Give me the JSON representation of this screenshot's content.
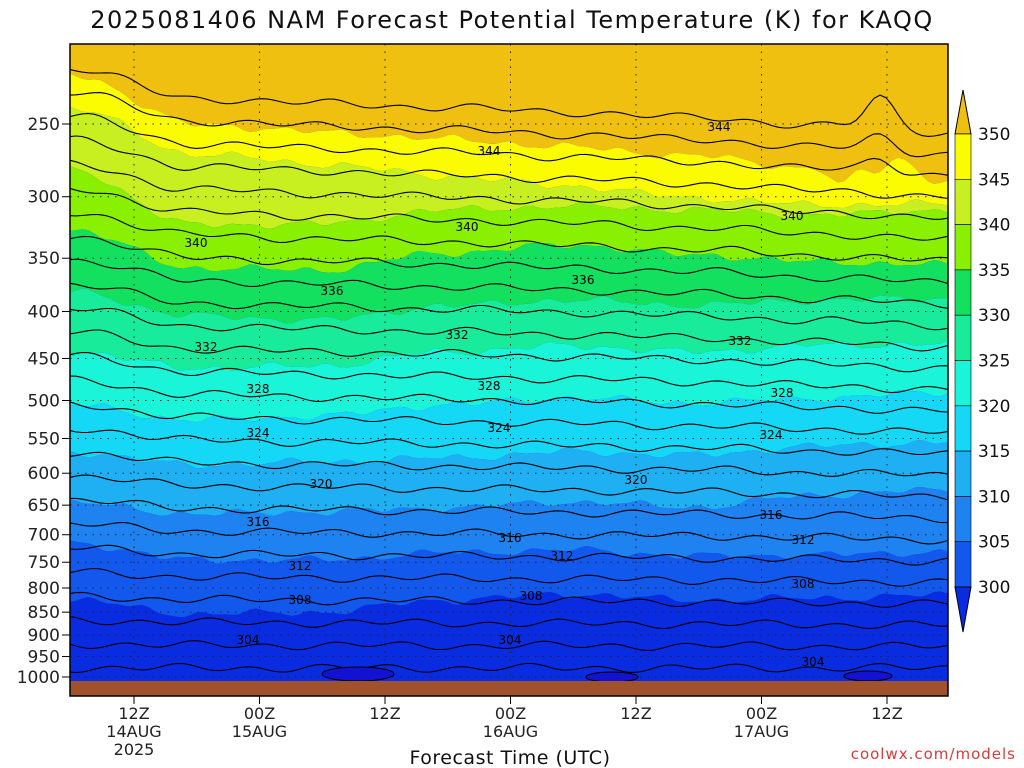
{
  "chart_data": {
    "type": "heatmap",
    "title": "2025081406 NAM Forecast Potential Temperature (K) for KAQQ",
    "xlabel": "Forecast Time (UTC)",
    "ylabel": "",
    "credit": "coolwx.com/models",
    "y_axis": {
      "ticks": [
        "250",
        "300",
        "350",
        "400",
        "450",
        "500",
        "550",
        "600",
        "650",
        "700",
        "750",
        "800",
        "850",
        "900",
        "950",
        "1000"
      ]
    },
    "x_axis": {
      "ticks": [
        {
          "time": "12Z",
          "date": "14AUG",
          "year": "2025"
        },
        {
          "time": "00Z",
          "date": "15AUG",
          "year": ""
        },
        {
          "time": "12Z",
          "date": "",
          "year": ""
        },
        {
          "time": "00Z",
          "date": "16AUG",
          "year": ""
        },
        {
          "time": "12Z",
          "date": "",
          "year": ""
        },
        {
          "time": "00Z",
          "date": "17AUG",
          "year": ""
        },
        {
          "time": "12Z",
          "date": "",
          "year": ""
        }
      ]
    },
    "colorbar": {
      "levels": [
        300,
        305,
        310,
        315,
        320,
        325,
        330,
        335,
        340,
        345,
        350
      ],
      "colors": [
        "#0a2ce0",
        "#1358ec",
        "#1e82f0",
        "#1fb0f4",
        "#15d8f6",
        "#1af4d8",
        "#18ec9a",
        "#14e060",
        "#88f000",
        "#c8f020",
        "#fcfc00",
        "#f0c010"
      ]
    },
    "contour_labels": [
      "344",
      "344",
      "340",
      "340",
      "340",
      "336",
      "336",
      "332",
      "332",
      "332",
      "328",
      "328",
      "328",
      "324",
      "324",
      "324",
      "320",
      "320",
      "316",
      "316",
      "316",
      "312",
      "312",
      "312",
      "308",
      "308",
      "308",
      "304",
      "304",
      "304"
    ],
    "grid": true
  }
}
